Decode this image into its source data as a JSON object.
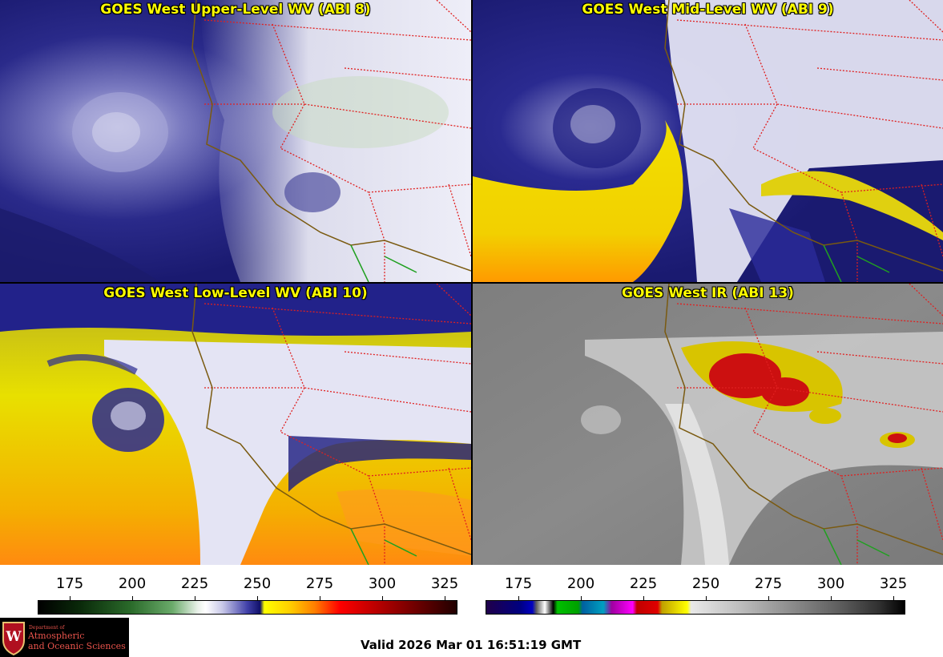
{
  "panels": [
    {
      "title": "GOES West Upper-Level WV (ABI 8)",
      "colormap": "wv-upper"
    },
    {
      "title": "GOES West Mid-Level WV (ABI 9)",
      "colormap": "wv-mid"
    },
    {
      "title": "GOES West Low-Level WV (ABI 10)",
      "colormap": "wv-low"
    },
    {
      "title": "GOES West IR (ABI 13)",
      "colormap": "ir"
    }
  ],
  "colorbars": {
    "wv": {
      "ticks": [
        "175",
        "200",
        "225",
        "250",
        "275",
        "300",
        "325"
      ],
      "range": [
        162.5,
        330
      ]
    },
    "ir": {
      "ticks": [
        "175",
        "200",
        "225",
        "250",
        "275",
        "300",
        "325"
      ],
      "range": [
        162.5,
        330
      ]
    }
  },
  "colors": {
    "title": "#ffff00",
    "state_borders": "#e02020",
    "coastline": "#7a5a10",
    "mexico_border": "#20a020"
  },
  "logo": {
    "line1": "Department of",
    "line2": "Atmospheric",
    "line3": "and Oceanic Sciences",
    "crest_letter": "W"
  },
  "footer": {
    "valid": "Valid 2026 Mar 01 16:51:19 GMT"
  }
}
